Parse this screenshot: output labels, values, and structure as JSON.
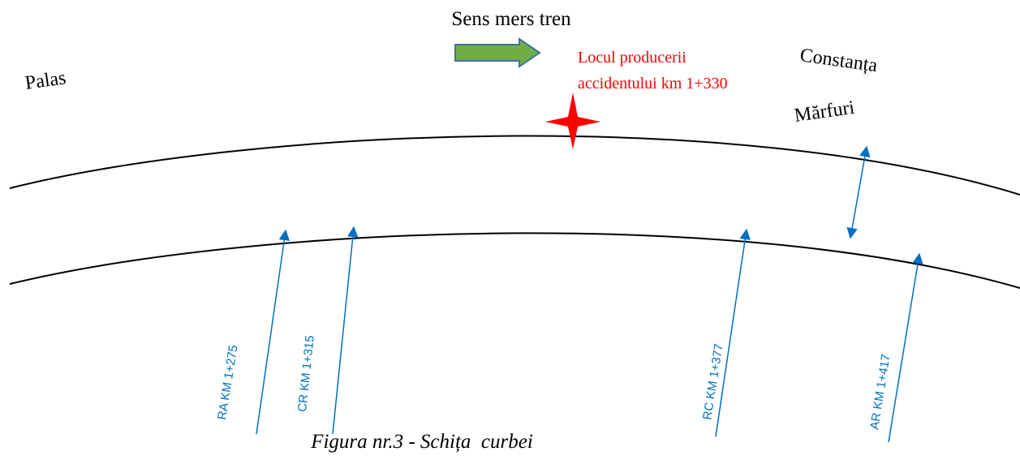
{
  "direction": {
    "label": "Sens mers tren"
  },
  "stations": {
    "start": "Palas",
    "end": [
      "Constanța",
      "Mărfuri"
    ]
  },
  "accident": {
    "label": [
      "Locul producerii",
      "accidentului km 1+330"
    ]
  },
  "markers": [
    {
      "label": "RA KM 1+275"
    },
    {
      "label": "CR KM 1+315"
    },
    {
      "label": "RC KM 1+377"
    },
    {
      "label": "AR KM 1+417"
    }
  ],
  "caption": "Figura nr.3 - Schița  curbei"
}
